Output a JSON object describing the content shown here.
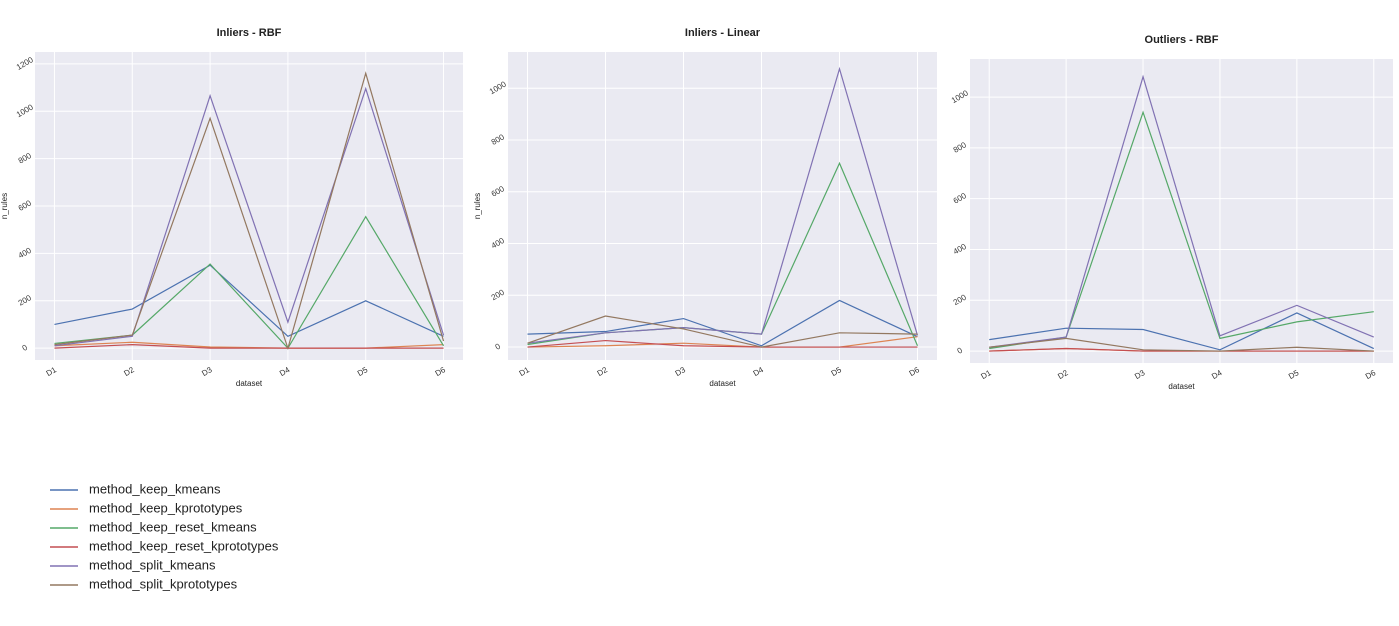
{
  "chart_data": [
    {
      "type": "line",
      "title": "Inliers - RBF",
      "xlabel": "dataset",
      "ylabel": "n_rules",
      "categories": [
        "D1",
        "D2",
        "D3",
        "D4",
        "D5",
        "D6"
      ],
      "ylim": [
        -50,
        1250
      ],
      "yticks": [
        0,
        200,
        400,
        600,
        800,
        1000,
        1200
      ],
      "grid": true,
      "series": [
        {
          "values": [
            100,
            165,
            350,
            50,
            200,
            50
          ]
        },
        {
          "values": [
            10,
            25,
            5,
            0,
            0,
            15
          ]
        },
        {
          "values": [
            20,
            55,
            355,
            0,
            555,
            10
          ]
        },
        {
          "values": [
            0,
            15,
            0,
            0,
            0,
            0
          ]
        },
        {
          "values": [
            10,
            50,
            1065,
            110,
            1095,
            55
          ]
        },
        {
          "values": [
            15,
            55,
            970,
            0,
            1160,
            30
          ]
        }
      ]
    },
    {
      "type": "line",
      "title": "Inliers - Linear",
      "xlabel": "dataset",
      "ylabel": "n_rules",
      "categories": [
        "D1",
        "D2",
        "D3",
        "D4",
        "D5",
        "D6"
      ],
      "ylim": [
        -50,
        1140
      ],
      "yticks": [
        0,
        200,
        400,
        600,
        800,
        1000
      ],
      "grid": true,
      "series": [
        {
          "values": [
            50,
            60,
            110,
            5,
            180,
            40
          ]
        },
        {
          "values": [
            0,
            5,
            15,
            0,
            0,
            40
          ]
        },
        {
          "values": [
            10,
            55,
            75,
            50,
            710,
            5
          ]
        },
        {
          "values": [
            0,
            25,
            5,
            0,
            0,
            0
          ]
        },
        {
          "values": [
            15,
            55,
            75,
            50,
            1075,
            45
          ]
        },
        {
          "values": [
            15,
            120,
            70,
            0,
            55,
            50
          ]
        }
      ]
    },
    {
      "type": "line",
      "title": "Outliers - RBF",
      "xlabel": "dataset",
      "categories": [
        "D1",
        "D2",
        "D3",
        "D4",
        "D5",
        "D6"
      ],
      "ylim": [
        -47,
        1150
      ],
      "yticks": [
        0,
        200,
        400,
        600,
        800,
        1000
      ],
      "grid": true,
      "series": [
        {
          "values": [
            45,
            90,
            85,
            5,
            150,
            10
          ]
        },
        {
          "values": [
            0,
            10,
            0,
            0,
            0,
            0
          ]
        },
        {
          "values": [
            10,
            55,
            940,
            50,
            115,
            155
          ]
        },
        {
          "values": [
            0,
            10,
            0,
            0,
            0,
            0
          ]
        },
        {
          "values": [
            15,
            55,
            1080,
            60,
            180,
            55
          ]
        },
        {
          "values": [
            15,
            50,
            5,
            0,
            15,
            0
          ]
        }
      ]
    }
  ],
  "legend": [
    {
      "name": "method_keep_kmeans",
      "color": "#4c72b0"
    },
    {
      "name": "method_keep_kprototypes",
      "color": "#dd8452"
    },
    {
      "name": "method_keep_reset_kmeans",
      "color": "#55a868"
    },
    {
      "name": "method_keep_reset_kprototypes",
      "color": "#c44e52"
    },
    {
      "name": "method_split_kmeans",
      "color": "#8172b3"
    },
    {
      "name": "method_split_kprototypes",
      "color": "#937860"
    }
  ]
}
